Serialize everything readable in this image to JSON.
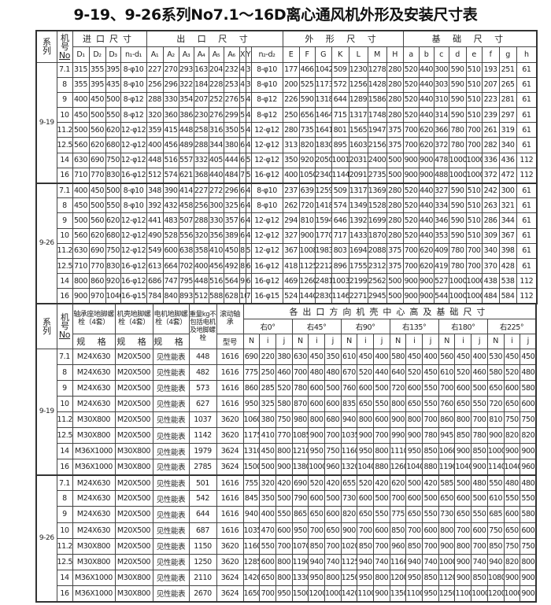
{
  "title": "9-19、9-26系列No7.1～16D离心通风机外形及安装尺寸表",
  "table1": {
    "series_label": "系列",
    "no_label": "机号",
    "no_sub": "No",
    "groups": [
      {
        "label": "进口尺寸",
        "cols": [
          "D₁",
          "D₂",
          "D₃",
          "n₁-d₁"
        ]
      },
      {
        "label": "出 口 尺 寸",
        "cols": [
          "A₁",
          "A₂",
          "A₃",
          "A₄",
          "A₅",
          "A₆",
          "X",
          "Y",
          "n₂-d₂"
        ]
      },
      {
        "label": "外 形 尺 寸",
        "cols": [
          "E",
          "F",
          "G",
          "K",
          "L",
          "M",
          "H"
        ]
      },
      {
        "label": "基 础 尺 寸",
        "cols": [
          "a",
          "b",
          "c",
          "d",
          "e",
          "f",
          "g",
          "h"
        ]
      }
    ],
    "series": [
      {
        "name": "9-19",
        "rows": [
          [
            "7.1",
            "315",
            "355",
            "395",
            "8-φ10",
            "227",
            "270",
            "293",
            "163",
            "204",
            "232",
            "4",
            "3",
            "8-φ10",
            "177",
            "466",
            "1042",
            "509",
            "1230",
            "1278",
            "280",
            "520",
            "440",
            "300",
            "590",
            "510",
            "193",
            "251",
            "61"
          ],
          [
            "8",
            "355",
            "395",
            "435",
            "8-φ10",
            "256",
            "296",
            "322",
            "184",
            "228",
            "253",
            "4",
            "3",
            "8-φ10",
            "200",
            "525",
            "1173",
            "572",
            "1256",
            "1428",
            "280",
            "520",
            "440",
            "303",
            "590",
            "510",
            "207",
            "265",
            "61"
          ],
          [
            "9",
            "400",
            "450",
            "500",
            "8-φ12",
            "288",
            "330",
            "354",
            "207",
            "252",
            "276",
            "5",
            "4",
            "8-φ12",
            "226",
            "590",
            "1318",
            "644",
            "1289",
            "1586",
            "280",
            "520",
            "440",
            "310",
            "590",
            "510",
            "223",
            "281",
            "61"
          ],
          [
            "10",
            "450",
            "500",
            "550",
            "8-φ12",
            "320",
            "360",
            "386",
            "230",
            "276",
            "299",
            "5",
            "4",
            "8-φ12",
            "250",
            "656",
            "1464",
            "715",
            "1317",
            "1748",
            "280",
            "520",
            "440",
            "314",
            "590",
            "510",
            "239",
            "297",
            "61"
          ],
          [
            "11.2",
            "500",
            "560",
            "620",
            "12-φ12",
            "359",
            "415",
            "448",
            "258",
            "316",
            "350",
            "5",
            "4",
            "12-φ12",
            "280",
            "735",
            "1641",
            "801",
            "1565",
            "1947",
            "375",
            "700",
            "620",
            "366",
            "780",
            "700",
            "261",
            "319",
            "61"
          ],
          [
            "12.5",
            "560",
            "620",
            "680",
            "12-φ12",
            "400",
            "456",
            "489",
            "288",
            "344",
            "380",
            "6",
            "4",
            "12-φ12",
            "313",
            "820",
            "1830",
            "895",
            "1603",
            "2156",
            "375",
            "700",
            "620",
            "372",
            "780",
            "700",
            "282",
            "340",
            "61"
          ],
          [
            "14",
            "630",
            "690",
            "750",
            "12-φ12",
            "448",
            "516",
            "557",
            "332",
            "405",
            "444",
            "6",
            "5",
            "12-φ12",
            "350",
            "920",
            "2050",
            "1001",
            "2031",
            "2400",
            "500",
            "900",
            "900",
            "478",
            "1000",
            "1000",
            "336",
            "436",
            "112"
          ],
          [
            "16",
            "710",
            "770",
            "830",
            "16-φ12",
            "512",
            "574",
            "621",
            "368",
            "440",
            "484",
            "7",
            "5",
            "16-φ12",
            "400",
            "1050",
            "2340",
            "1144",
            "2091",
            "2735",
            "500",
            "900",
            "900",
            "488",
            "1000",
            "1000",
            "372",
            "472",
            "112"
          ]
        ]
      },
      {
        "name": "9-26",
        "rows": [
          [
            "7.1",
            "400",
            "450",
            "500",
            "8-φ10",
            "348",
            "390",
            "414",
            "227",
            "272",
            "296",
            "6",
            "4",
            "8-φ10",
            "237",
            "639",
            "1259",
            "509",
            "1317",
            "1369",
            "280",
            "520",
            "440",
            "327",
            "590",
            "510",
            "242",
            "300",
            "61"
          ],
          [
            "8",
            "450",
            "500",
            "550",
            "8-φ10",
            "392",
            "432",
            "458",
            "256",
            "300",
            "325",
            "6",
            "4",
            "8-φ10",
            "262",
            "720",
            "1418",
            "574",
            "1349",
            "1528",
            "280",
            "520",
            "440",
            "334",
            "590",
            "510",
            "263",
            "321",
            "61"
          ],
          [
            "9",
            "500",
            "560",
            "620",
            "12-φ12",
            "441",
            "483",
            "507",
            "288",
            "330",
            "357",
            "6",
            "4",
            "12-φ12",
            "294",
            "810",
            "1594",
            "646",
            "1392",
            "1699",
            "280",
            "520",
            "440",
            "346",
            "590",
            "510",
            "286",
            "344",
            "61"
          ],
          [
            "10",
            "560",
            "620",
            "680",
            "12-φ12",
            "490",
            "528",
            "556",
            "320",
            "356",
            "389",
            "6",
            "4",
            "12-φ12",
            "327",
            "900",
            "1770",
            "717",
            "1433",
            "1870",
            "280",
            "520",
            "440",
            "353",
            "590",
            "510",
            "309",
            "367",
            "61"
          ],
          [
            "11.2",
            "630",
            "690",
            "750",
            "12-φ12",
            "549",
            "600",
            "638",
            "358",
            "410",
            "450",
            "8",
            "5",
            "12-φ12",
            "367",
            "1008",
            "1983",
            "803",
            "1694",
            "2088",
            "375",
            "700",
            "620",
            "409",
            "780",
            "700",
            "340",
            "398",
            "61"
          ],
          [
            "12.5",
            "710",
            "770",
            "830",
            "16-φ12",
            "613",
            "664",
            "702",
            "400",
            "456",
            "492",
            "8",
            "6",
            "16-φ12",
            "418",
            "1125",
            "2212",
            "896",
            "1755",
            "2312",
            "375",
            "700",
            "620",
            "419",
            "780",
            "700",
            "370",
            "428",
            "61"
          ],
          [
            "14",
            "800",
            "860",
            "920",
            "16-φ12",
            "686",
            "747",
            "795",
            "448",
            "516",
            "564",
            "9",
            "6",
            "16-φ12",
            "469",
            "1260",
            "2481",
            "1003",
            "2199",
            "2562",
            "500",
            "900",
            "900",
            "527",
            "1000",
            "1000",
            "438",
            "538",
            "112"
          ],
          [
            "16",
            "900",
            "970",
            "1040",
            "16-φ15",
            "784",
            "840",
            "893",
            "512",
            "588",
            "628",
            "10",
            "7",
            "16-φ15",
            "524",
            "1440",
            "2830",
            "1146",
            "2271",
            "2945",
            "500",
            "900",
            "900",
            "544",
            "1000",
            "1000",
            "484",
            "584",
            "112"
          ]
        ]
      }
    ]
  },
  "table2": {
    "series_label": "系列",
    "no_label": "机号",
    "no_sub": "No",
    "bearing_bolt": "轴承座地脚螺栓（4套）",
    "casing_bolt": "机壳地脚螺栓（4套）",
    "motor_bolt": "电机地脚螺栓（4套）",
    "spec": "规 格",
    "weight": "重量kg不包括电机及地脚螺栓",
    "rolling_bearing": "滚动轴承",
    "model": "型号",
    "outlet_group": "各出口方向机壳中心高及基础尺寸",
    "angles": [
      "右0°",
      "右45°",
      "右90°",
      "右135°",
      "右180°",
      "右225°"
    ],
    "sub_cols": [
      "N",
      "i",
      "j"
    ],
    "series": [
      {
        "name": "9-19",
        "rows": [
          [
            "7.1",
            "M24X630",
            "M20X500",
            "见性能表",
            "448",
            "1616",
            "690",
            "220",
            "380",
            "630",
            "450",
            "350",
            "610",
            "450",
            "400",
            "580",
            "450",
            "400",
            "560",
            "450",
            "400",
            "530",
            "450",
            "450"
          ],
          [
            "8",
            "M24X630",
            "M20X500",
            "见性能表",
            "482",
            "1616",
            "775",
            "250",
            "460",
            "700",
            "480",
            "480",
            "670",
            "520",
            "440",
            "640",
            "520",
            "450",
            "610",
            "520",
            "460",
            "580",
            "520",
            "480"
          ],
          [
            "9",
            "M24X630",
            "M20X500",
            "见性能表",
            "573",
            "1616",
            "860",
            "285",
            "520",
            "780",
            "600",
            "500",
            "760",
            "600",
            "500",
            "720",
            "600",
            "550",
            "700",
            "600",
            "500",
            "650",
            "600",
            "580"
          ],
          [
            "10",
            "M24X630",
            "M20X500",
            "见性能表",
            "627",
            "1616",
            "950",
            "325",
            "580",
            "870",
            "600",
            "600",
            "835",
            "650",
            "550",
            "800",
            "650",
            "550",
            "760",
            "650",
            "550",
            "720",
            "650",
            "600"
          ],
          [
            "11.2",
            "M30X800",
            "M20X500",
            "见性能表",
            "1037",
            "3620",
            "1060",
            "380",
            "750",
            "980",
            "800",
            "680",
            "940",
            "800",
            "600",
            "900",
            "800",
            "700",
            "860",
            "800",
            "700",
            "810",
            "750",
            "750"
          ],
          [
            "12.5",
            "M30X800",
            "M20X500",
            "见性能表",
            "1142",
            "3620",
            "1175",
            "410",
            "770",
            "1085",
            "900",
            "700",
            "1035",
            "900",
            "700",
            "990",
            "900",
            "780",
            "945",
            "850",
            "780",
            "900",
            "820",
            "820"
          ],
          [
            "14",
            "M36X1000",
            "M30X800",
            "见性能表",
            "1979",
            "3624",
            "1310",
            "450",
            "800",
            "1210",
            "950",
            "750",
            "1160",
            "950",
            "800",
            "1110",
            "950",
            "850",
            "1060",
            "900",
            "850",
            "1000",
            "900",
            "900"
          ],
          [
            "16",
            "M36X1000",
            "M30X800",
            "见性能表",
            "2785",
            "3624",
            "1500",
            "500",
            "900",
            "1380",
            "1000",
            "960",
            "1320",
            "1040",
            "880",
            "1260",
            "1040",
            "880",
            "1190",
            "1040",
            "900",
            "1140",
            "1040",
            "960"
          ]
        ]
      },
      {
        "name": "9-26",
        "rows": [
          [
            "7.1",
            "M24X630",
            "M20X500",
            "见性能表",
            "501",
            "1616",
            "755",
            "320",
            "420",
            "690",
            "520",
            "420",
            "655",
            "520",
            "420",
            "620",
            "500",
            "420",
            "585",
            "500",
            "480",
            "550",
            "480",
            "480"
          ],
          [
            "8",
            "M24X630",
            "M20X500",
            "见性能表",
            "542",
            "1616",
            "845",
            "350",
            "500",
            "790",
            "600",
            "500",
            "730",
            "600",
            "500",
            "700",
            "600",
            "500",
            "650",
            "600",
            "500",
            "610",
            "550",
            "550"
          ],
          [
            "9",
            "M24X630",
            "M20X500",
            "见性能表",
            "644",
            "1616",
            "940",
            "400",
            "550",
            "865",
            "650",
            "600",
            "820",
            "650",
            "550",
            "775",
            "650",
            "550",
            "730",
            "650",
            "550",
            "685",
            "600",
            "580"
          ],
          [
            "10",
            "M24X630",
            "M20X500",
            "见性能表",
            "687",
            "1616",
            "1035",
            "470",
            "600",
            "950",
            "700",
            "650",
            "900",
            "700",
            "600",
            "850",
            "700",
            "600",
            "800",
            "700",
            "600",
            "750",
            "650",
            "600"
          ],
          [
            "11.2",
            "M30X800",
            "M20X500",
            "见性能表",
            "1150",
            "3620",
            "1160",
            "550",
            "700",
            "1070",
            "850",
            "700",
            "1020",
            "850",
            "700",
            "960",
            "850",
            "700",
            "900",
            "800",
            "700",
            "850",
            "750",
            "750"
          ],
          [
            "12.5",
            "M30X800",
            "M20X500",
            "见性能表",
            "1250",
            "3620",
            "1285",
            "600",
            "800",
            "1190",
            "940",
            "740",
            "1125",
            "940",
            "740",
            "1160",
            "940",
            "740",
            "1000",
            "900",
            "740",
            "940",
            "820",
            "800"
          ],
          [
            "14",
            "M36X1000",
            "M30X800",
            "见性能表",
            "2110",
            "3624",
            "1420",
            "650",
            "800",
            "1330",
            "950",
            "800",
            "1250",
            "950",
            "800",
            "1200",
            "950",
            "850",
            "1120",
            "900",
            "850",
            "1080",
            "900",
            "900"
          ],
          [
            "16",
            "M36X1000",
            "M30X800",
            "见性能表",
            "2670",
            "3624",
            "1650",
            "700",
            "950",
            "1500",
            "1200",
            "1000",
            "1420",
            "1100",
            "900",
            "1350",
            "1100",
            "950",
            "1250",
            "1100",
            "1000",
            "1200",
            "1000",
            "900"
          ]
        ]
      }
    ]
  }
}
